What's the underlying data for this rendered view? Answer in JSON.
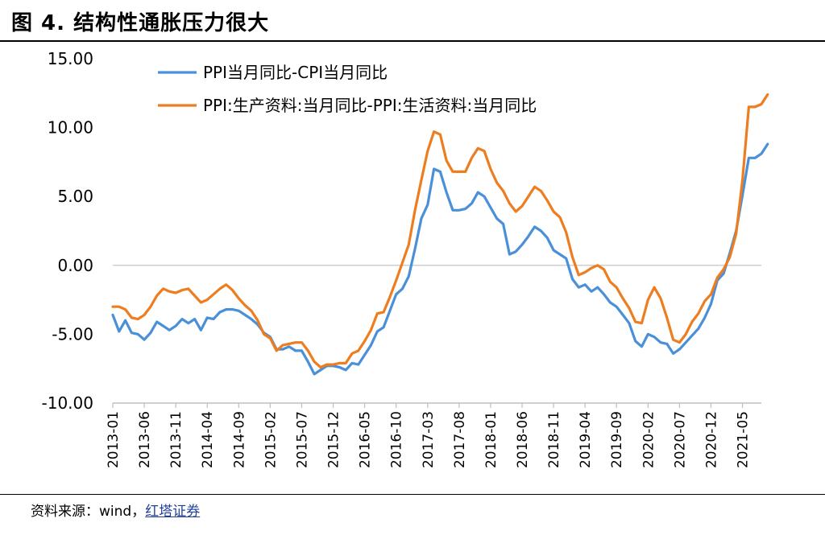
{
  "figure": {
    "title": "图 4. 结构性通胀压力很大",
    "source_prefix": "资料来源：wind，",
    "source_link": "红塔证券"
  },
  "chart_data": {
    "type": "line",
    "title": "",
    "xlabel": "",
    "ylabel": "",
    "ylim": [
      -10,
      15
    ],
    "y_ticks": [
      "15.00",
      "10.00",
      "5.00",
      "0.00",
      "-5.00",
      "-10.00"
    ],
    "y_tick_values": [
      15,
      10,
      5,
      0,
      -5,
      -10
    ],
    "x_tick_labels": [
      "2013-01",
      "2013-06",
      "2013-11",
      "2014-04",
      "2014-09",
      "2015-02",
      "2015-07",
      "2015-12",
      "2016-05",
      "2016-10",
      "2017-03",
      "2017-08",
      "2018-01",
      "2018-06",
      "2018-11",
      "2019-04",
      "2019-09",
      "2020-02",
      "2020-07",
      "2020-12",
      "2021-05"
    ],
    "x_start": "2013-01",
    "x_end": "2021-08",
    "legend_position": "top",
    "series": [
      {
        "name": "PPI当月同比-CPI当月同比",
        "color": "#4a90d9",
        "values": [
          -3.6,
          -4.8,
          -4.0,
          -4.9,
          -5.0,
          -5.4,
          -4.9,
          -4.1,
          -4.4,
          -4.7,
          -4.4,
          -3.9,
          -4.2,
          -3.9,
          -4.7,
          -3.8,
          -3.9,
          -3.4,
          -3.2,
          -3.2,
          -3.3,
          -3.6,
          -3.9,
          -4.3,
          -4.9,
          -5.2,
          -6.1,
          -6.1,
          -5.9,
          -6.2,
          -6.2,
          -7.0,
          -7.9,
          -7.6,
          -7.3,
          -7.3,
          -7.4,
          -7.6,
          -7.1,
          -7.2,
          -6.5,
          -5.8,
          -4.8,
          -4.5,
          -3.3,
          -2.1,
          -1.7,
          -0.8,
          1.2,
          3.4,
          4.4,
          7.0,
          6.8,
          5.3,
          4.0,
          4.0,
          4.1,
          4.5,
          5.3,
          5.0,
          4.2,
          3.4,
          3.0,
          0.8,
          1.0,
          1.5,
          2.1,
          2.8,
          2.5,
          2.0,
          1.1,
          0.8,
          0.5,
          -1.0,
          -1.6,
          -1.4,
          -1.9,
          -1.6,
          -2.1,
          -2.7,
          -3.0,
          -3.6,
          -4.2,
          -5.5,
          -5.9,
          -5.0,
          -5.2,
          -5.6,
          -5.7,
          -6.4,
          -6.1,
          -5.6,
          -5.1,
          -4.6,
          -3.8,
          -2.8,
          -1.1,
          -0.6,
          0.9,
          2.5,
          5.1,
          7.8,
          7.8,
          8.1,
          8.8
        ]
      },
      {
        "name": "PPI:生产资料:当月同比-PPI:生活资料:当月同比",
        "color": "#ed7d1f",
        "values": [
          -3.0,
          -3.0,
          -3.2,
          -3.8,
          -3.9,
          -3.6,
          -3.0,
          -2.2,
          -1.7,
          -1.9,
          -2.0,
          -1.8,
          -1.7,
          -2.2,
          -2.7,
          -2.5,
          -2.1,
          -1.7,
          -1.4,
          -1.8,
          -2.4,
          -2.9,
          -3.3,
          -4.0,
          -5.0,
          -5.3,
          -6.2,
          -5.8,
          -5.7,
          -5.6,
          -5.6,
          -6.2,
          -7.0,
          -7.4,
          -7.2,
          -7.2,
          -7.1,
          -7.1,
          -6.4,
          -6.2,
          -5.5,
          -4.7,
          -3.5,
          -3.4,
          -2.3,
          -1.1,
          0.2,
          1.5,
          4.0,
          6.2,
          8.3,
          9.7,
          9.5,
          7.6,
          6.8,
          6.8,
          6.8,
          7.8,
          8.5,
          8.3,
          7.0,
          6.0,
          5.4,
          4.5,
          3.9,
          4.3,
          5.0,
          5.7,
          5.4,
          4.7,
          3.9,
          3.5,
          2.4,
          0.6,
          -0.7,
          -0.5,
          -0.2,
          0.0,
          -0.3,
          -1.2,
          -1.6,
          -2.4,
          -3.1,
          -4.1,
          -4.2,
          -2.5,
          -1.6,
          -2.4,
          -3.8,
          -5.4,
          -5.6,
          -5.0,
          -4.1,
          -3.5,
          -2.6,
          -2.1,
          -0.9,
          -0.3,
          0.6,
          2.3,
          6.2,
          11.5,
          11.5,
          11.7,
          12.4
        ]
      }
    ]
  }
}
